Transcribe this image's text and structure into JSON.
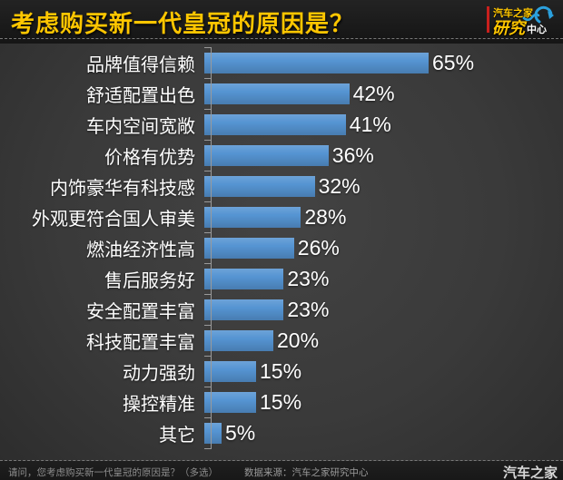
{
  "header": {
    "title": "考虑购买新一代皇冠的原因是？",
    "logo": {
      "line1": "汽车之家",
      "line2": "研究",
      "line3": "中心",
      "swoosh_icon": "circular-arrow",
      "swoosh_color": "#2ba0dd",
      "accent_red": "#c9201d",
      "brand_yellow": "#ffc600"
    }
  },
  "chart_data": {
    "type": "bar",
    "orientation": "horizontal",
    "title": "考虑购买新一代皇冠的原因是？",
    "categories": [
      "品牌值得信赖",
      "舒适配置出色",
      "车内空间宽敞",
      "价格有优势",
      "内饰豪华有科技感",
      "外观更符合国人审美",
      "燃油经济性高",
      "售后服务好",
      "安全配置丰富",
      "科技配置丰富",
      "动力强劲",
      "操控精准",
      "其它"
    ],
    "values": [
      65,
      42,
      41,
      36,
      32,
      28,
      26,
      23,
      23,
      20,
      15,
      15,
      5
    ],
    "unit": "%",
    "value_labels": [
      "65%",
      "42%",
      "41%",
      "36%",
      "32%",
      "28%",
      "26%",
      "23%",
      "23%",
      "20%",
      "15%",
      "15%",
      "5%"
    ],
    "bar_color": "#5594d2",
    "axis_color": "#9a9a9a",
    "label_color": "#ffffff",
    "xlim": [
      0,
      65
    ],
    "grid": false,
    "legend": false
  },
  "footer": {
    "question": "请问，您考虑购买新一代皇冠的原因是？（多选）",
    "source": "数据来源：汽车之家研究中心",
    "brand": "汽车之家"
  }
}
